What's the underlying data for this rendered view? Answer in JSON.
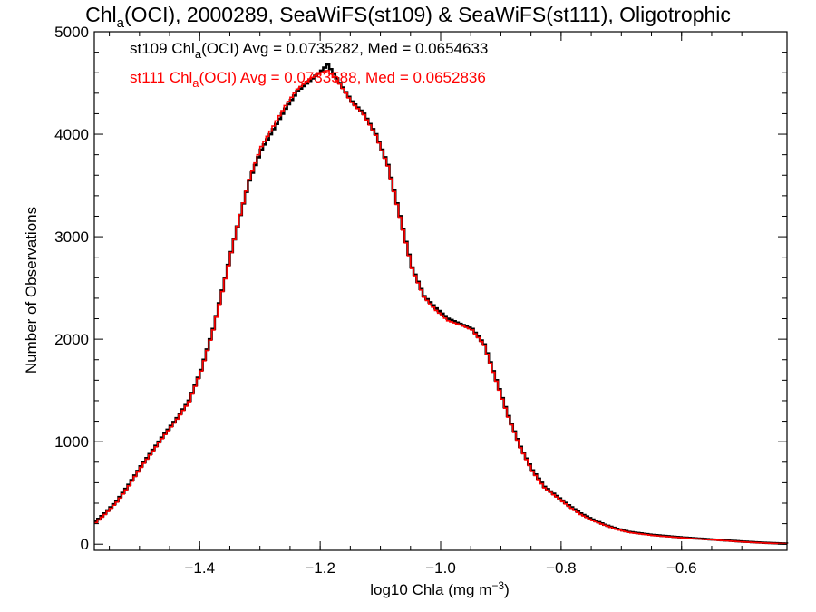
{
  "chart_data": {
    "type": "line",
    "title_main": "Chl",
    "title_sub": "a",
    "title_rest": "(OCI), 2000289, SeaWiFS(st109) & SeaWiFS(st111), Oligotrophic",
    "xlabel_main": "log10 Chla (mg m",
    "xlabel_sup": "−3",
    "xlabel_end": ")",
    "ylabel": "Number of Observations",
    "xlim": [
      -1.575,
      -0.425
    ],
    "ylim": [
      -60,
      5000
    ],
    "xticks": [
      {
        "value": -1.4,
        "label": "−1.4"
      },
      {
        "value": -1.2,
        "label": "−1.2"
      },
      {
        "value": -1.0,
        "label": "−1.0"
      },
      {
        "value": -0.8,
        "label": "−0.8"
      },
      {
        "value": -0.6,
        "label": "−0.6"
      }
    ],
    "yticks": [
      {
        "value": 0,
        "label": "0"
      },
      {
        "value": 1000,
        "label": "1000"
      },
      {
        "value": 2000,
        "label": "2000"
      },
      {
        "value": 3000,
        "label": "3000"
      },
      {
        "value": 4000,
        "label": "4000"
      },
      {
        "value": 5000,
        "label": "5000"
      }
    ],
    "stats": [
      {
        "series": "st109",
        "color": "#000000",
        "pre": "st109 Chl",
        "sub": "a",
        "post": "(OCI) Avg = 0.0735282, Med = 0.0654633"
      },
      {
        "series": "st111",
        "color": "#ff0000",
        "pre": "st111 Chl",
        "sub": "a",
        "post": "(OCI) Avg = 0.0733588, Med = 0.0652836"
      }
    ],
    "series": [
      {
        "name": "st109",
        "color": "#000000",
        "points": [
          [
            -1.575,
            220
          ],
          [
            -1.56,
            300
          ],
          [
            -1.54,
            420
          ],
          [
            -1.52,
            580
          ],
          [
            -1.5,
            760
          ],
          [
            -1.48,
            920
          ],
          [
            -1.46,
            1080
          ],
          [
            -1.44,
            1230
          ],
          [
            -1.42,
            1400
          ],
          [
            -1.4,
            1700
          ],
          [
            -1.38,
            2100
          ],
          [
            -1.36,
            2600
          ],
          [
            -1.34,
            3100
          ],
          [
            -1.32,
            3550
          ],
          [
            -1.3,
            3850
          ],
          [
            -1.28,
            4050
          ],
          [
            -1.26,
            4250
          ],
          [
            -1.24,
            4420
          ],
          [
            -1.22,
            4520
          ],
          [
            -1.2,
            4620
          ],
          [
            -1.19,
            4680
          ],
          [
            -1.17,
            4500
          ],
          [
            -1.15,
            4320
          ],
          [
            -1.13,
            4200
          ],
          [
            -1.11,
            4000
          ],
          [
            -1.09,
            3700
          ],
          [
            -1.07,
            3200
          ],
          [
            -1.05,
            2700
          ],
          [
            -1.03,
            2420
          ],
          [
            -1.01,
            2300
          ],
          [
            -0.99,
            2200
          ],
          [
            -0.97,
            2150
          ],
          [
            -0.95,
            2100
          ],
          [
            -0.93,
            1950
          ],
          [
            -0.91,
            1600
          ],
          [
            -0.89,
            1250
          ],
          [
            -0.87,
            950
          ],
          [
            -0.85,
            720
          ],
          [
            -0.83,
            560
          ],
          [
            -0.81,
            470
          ],
          [
            -0.79,
            380
          ],
          [
            -0.77,
            300
          ],
          [
            -0.75,
            240
          ],
          [
            -0.73,
            190
          ],
          [
            -0.71,
            150
          ],
          [
            -0.69,
            120
          ],
          [
            -0.65,
            90
          ],
          [
            -0.6,
            65
          ],
          [
            -0.55,
            45
          ],
          [
            -0.5,
            25
          ],
          [
            -0.46,
            12
          ],
          [
            -0.425,
            5
          ]
        ]
      },
      {
        "name": "st111",
        "color": "#ff0000",
        "points": [
          [
            -1.575,
            210
          ],
          [
            -1.56,
            290
          ],
          [
            -1.54,
            410
          ],
          [
            -1.52,
            570
          ],
          [
            -1.5,
            750
          ],
          [
            -1.48,
            910
          ],
          [
            -1.46,
            1070
          ],
          [
            -1.44,
            1220
          ],
          [
            -1.42,
            1390
          ],
          [
            -1.4,
            1690
          ],
          [
            -1.38,
            2090
          ],
          [
            -1.36,
            2590
          ],
          [
            -1.34,
            3100
          ],
          [
            -1.32,
            3560
          ],
          [
            -1.3,
            3880
          ],
          [
            -1.28,
            4080
          ],
          [
            -1.26,
            4280
          ],
          [
            -1.24,
            4440
          ],
          [
            -1.22,
            4540
          ],
          [
            -1.2,
            4600
          ],
          [
            -1.19,
            4620
          ],
          [
            -1.17,
            4490
          ],
          [
            -1.15,
            4310
          ],
          [
            -1.13,
            4190
          ],
          [
            -1.11,
            3990
          ],
          [
            -1.09,
            3690
          ],
          [
            -1.07,
            3190
          ],
          [
            -1.05,
            2690
          ],
          [
            -1.03,
            2410
          ],
          [
            -1.01,
            2280
          ],
          [
            -0.99,
            2180
          ],
          [
            -0.97,
            2140
          ],
          [
            -0.95,
            2090
          ],
          [
            -0.93,
            1940
          ],
          [
            -0.91,
            1590
          ],
          [
            -0.89,
            1240
          ],
          [
            -0.87,
            940
          ],
          [
            -0.85,
            710
          ],
          [
            -0.83,
            550
          ],
          [
            -0.81,
            460
          ],
          [
            -0.79,
            370
          ],
          [
            -0.77,
            290
          ],
          [
            -0.75,
            230
          ],
          [
            -0.73,
            185
          ],
          [
            -0.71,
            145
          ],
          [
            -0.69,
            115
          ],
          [
            -0.65,
            85
          ],
          [
            -0.6,
            62
          ],
          [
            -0.55,
            42
          ],
          [
            -0.5,
            22
          ],
          [
            -0.46,
            10
          ],
          [
            -0.425,
            4
          ]
        ]
      }
    ]
  }
}
